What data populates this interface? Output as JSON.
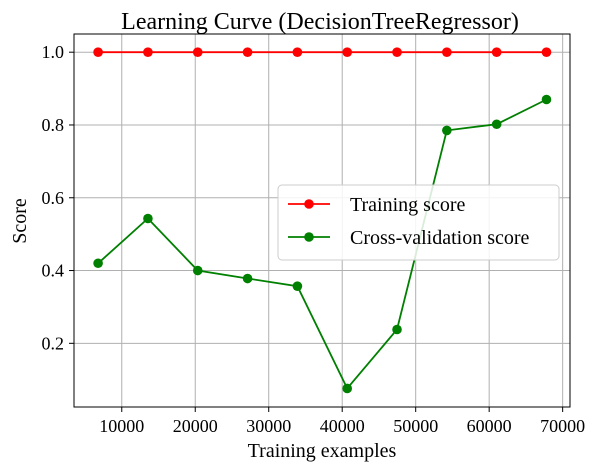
{
  "chart_data": {
    "type": "line",
    "title": "Learning Curve (DecisionTreeRegressor)",
    "xlabel": "Training examples",
    "ylabel": "Score",
    "xlim": [
      3500,
      71000
    ],
    "ylim": [
      0.025,
      1.05
    ],
    "xticks": [
      10000,
      20000,
      30000,
      40000,
      50000,
      60000,
      70000
    ],
    "yticks": [
      0.2,
      0.4,
      0.6,
      0.8,
      1.0
    ],
    "xtick_labels": [
      "10000",
      "20000",
      "30000",
      "40000",
      "50000",
      "60000",
      "70000"
    ],
    "ytick_labels": [
      "0.2",
      "0.4",
      "0.6",
      "0.8",
      "1.0"
    ],
    "grid": true,
    "legend_position": "center-right",
    "x": [
      6780,
      13560,
      20340,
      27120,
      33900,
      40680,
      47460,
      54240,
      61020,
      67800
    ],
    "series": [
      {
        "name": "Training score",
        "color": "#ff0000",
        "values": [
          1.0,
          1.0,
          1.0,
          1.0,
          1.0,
          1.0,
          1.0,
          1.0,
          1.0,
          1.0
        ]
      },
      {
        "name": "Cross-validation score",
        "color": "#008000",
        "values": [
          0.42,
          0.543,
          0.4,
          0.378,
          0.357,
          0.076,
          0.238,
          0.785,
          0.802,
          0.87
        ]
      }
    ]
  }
}
